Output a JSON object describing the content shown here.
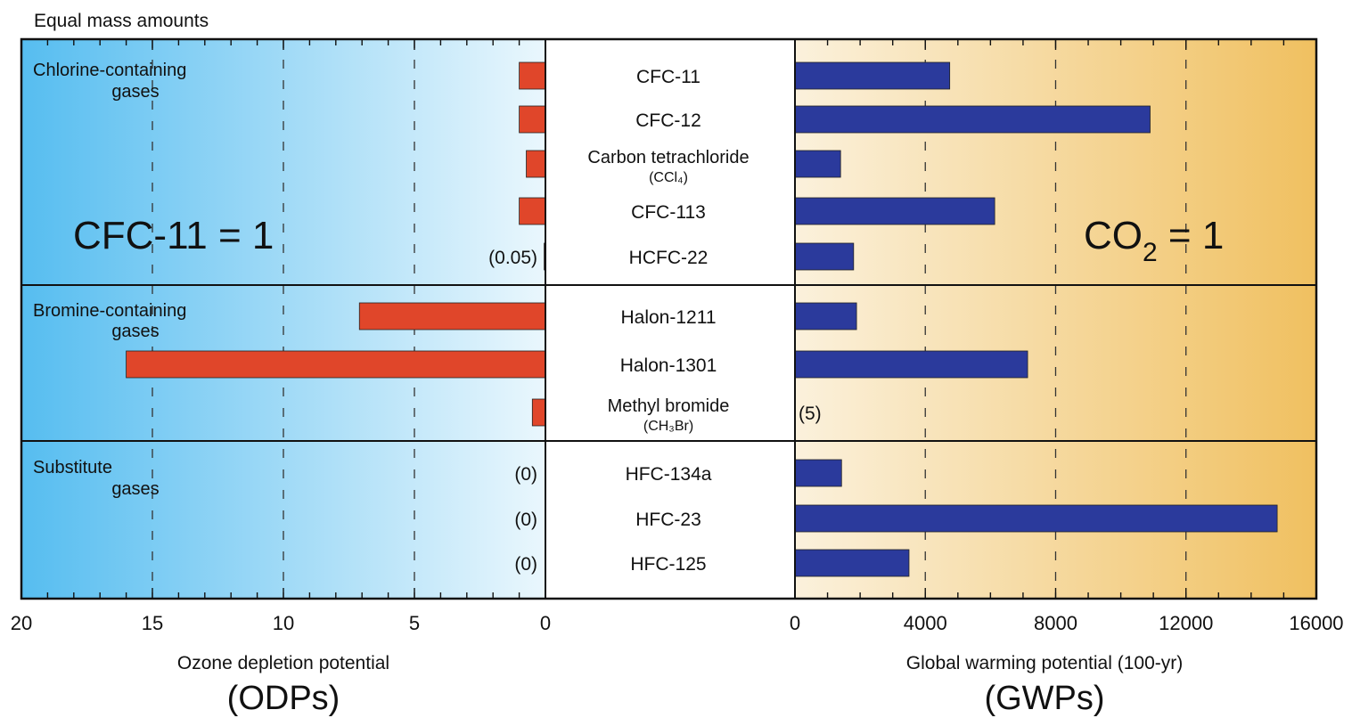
{
  "figure": {
    "note": "Equal mass amounts",
    "left_ref": "CFC-11 = 1",
    "right_ref_main": "CO",
    "right_ref_sub": "2",
    "right_ref_tail": " = 1"
  },
  "chart_data": {
    "type": "bar",
    "groups": [
      {
        "label": [
          "Chlorine-containing",
          "gases"
        ],
        "rows": [
          0,
          1,
          2,
          3,
          4
        ]
      },
      {
        "label": [
          "Bromine-containing",
          "gases"
        ],
        "rows": [
          5,
          6,
          7
        ]
      },
      {
        "label": [
          "Substitute",
          "gases"
        ],
        "rows": [
          8,
          9,
          10
        ]
      }
    ],
    "categories": [
      {
        "name": "CFC-11",
        "sub": ""
      },
      {
        "name": "CFC-12",
        "sub": ""
      },
      {
        "name": "Carbon tetrachloride",
        "sub": "(CCl₄)"
      },
      {
        "name": "CFC-113",
        "sub": ""
      },
      {
        "name": "HCFC-22",
        "sub": ""
      },
      {
        "name": "Halon-1211",
        "sub": ""
      },
      {
        "name": "Halon-1301",
        "sub": ""
      },
      {
        "name": "Methyl bromide",
        "sub": "(CH₃Br)"
      },
      {
        "name": "HFC-134a",
        "sub": ""
      },
      {
        "name": "HFC-23",
        "sub": ""
      },
      {
        "name": "HFC-125",
        "sub": ""
      }
    ],
    "series": [
      {
        "name": "Ozone depletion potential",
        "color": "#e0462a",
        "values": [
          1,
          1,
          0.73,
          1,
          0.05,
          7.1,
          16,
          0.5,
          0,
          0,
          0
        ],
        "value_labels": [
          "",
          "",
          "",
          "",
          "(0.05)",
          "",
          "",
          "",
          "(0)",
          "(0)",
          "(0)"
        ]
      },
      {
        "name": "Global warming potential (100-yr)",
        "color": "#2b3a9c",
        "values": [
          4750,
          10900,
          1400,
          6130,
          1800,
          1890,
          7140,
          5,
          1430,
          14800,
          3500
        ],
        "value_labels": [
          "",
          "",
          "",
          "",
          "",
          "",
          "",
          "(5)",
          "",
          "",
          ""
        ]
      }
    ],
    "left_axis": {
      "label": "Ozone depletion potential",
      "sublabel": "(ODPs)",
      "ticks": [
        20,
        15,
        10,
        5,
        0
      ],
      "range": [
        0,
        20
      ],
      "direction": "reversed"
    },
    "right_axis": {
      "label": "Global warming potential (100-yr)",
      "sublabel": "(GWPs)",
      "ticks": [
        0,
        4000,
        8000,
        12000,
        16000
      ],
      "range": [
        0,
        16000
      ]
    },
    "grid": true
  }
}
